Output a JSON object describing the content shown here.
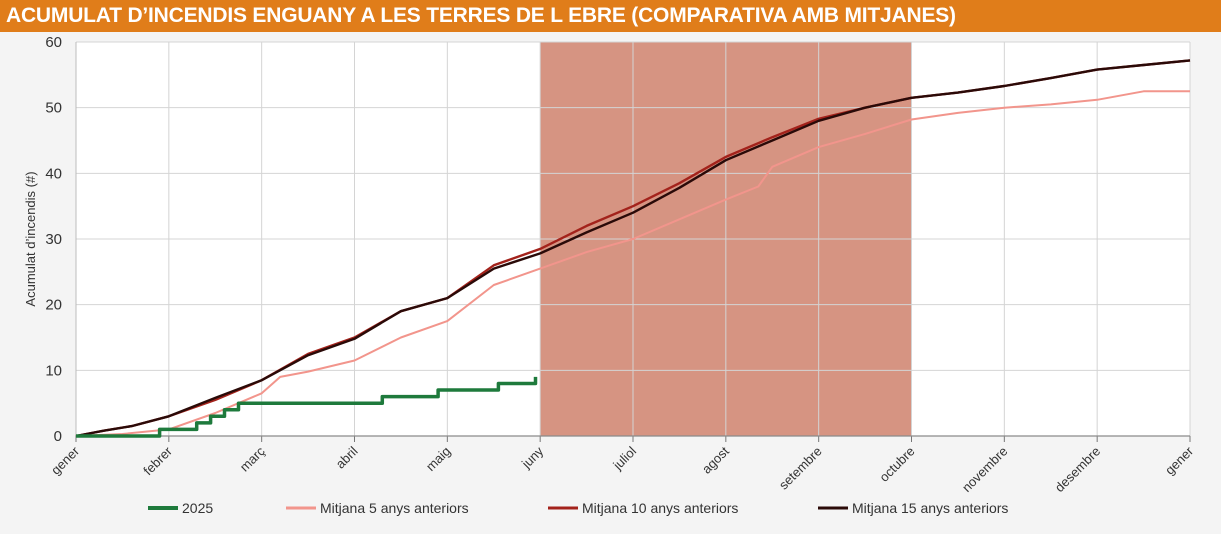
{
  "title": "ACUMULAT D’INCENDIS ENGUANY A LES TERRES DE L EBRE (COMPARATIVA AMB MITJANES)",
  "colors": {
    "title_bar": "#e07d1a",
    "highlight": "#d28b77",
    "series_2025": "#1e7a3c",
    "series_5": "#f2958c",
    "series_10": "#a3221b",
    "series_15": "#2a0a08"
  },
  "chart_data": {
    "type": "line",
    "title": "",
    "ylabel": "Acumulat d’incendis (#)",
    "xlabel": "",
    "ylim": [
      0,
      60
    ],
    "yticks": [
      0,
      10,
      20,
      30,
      40,
      50,
      60
    ],
    "xlim": [
      0,
      12
    ],
    "month_labels": [
      "gener",
      "febrer",
      "març",
      "abril",
      "maig",
      "juny",
      "juliol",
      "agost",
      "setembre",
      "octubre",
      "novembre",
      "desembre",
      "gener"
    ],
    "highlight_range": [
      5,
      9
    ],
    "grid": true,
    "legend_position": "bottom",
    "series": [
      {
        "name": "2025",
        "color": "#1e7a3c",
        "x": [
          0,
          0.9,
          0.9,
          1.3,
          1.3,
          1.45,
          1.45,
          1.6,
          1.6,
          1.75,
          1.75,
          1.95,
          1.95,
          3.3,
          3.3,
          3.9,
          3.9,
          4.3,
          4.3,
          4.55,
          4.55,
          4.95,
          4.95
        ],
        "y": [
          0,
          0,
          1,
          1,
          2,
          2,
          3,
          3,
          4,
          4,
          5,
          5,
          5,
          5,
          6,
          6,
          7,
          7,
          7,
          7,
          8,
          8,
          9
        ]
      },
      {
        "name": "Mitjana 5 anys anteriors",
        "color": "#f2958c",
        "x": [
          0,
          0.5,
          1,
          1.5,
          2,
          2.2,
          2.5,
          3,
          3.5,
          4,
          4.5,
          5,
          5.5,
          6,
          6.5,
          7,
          7.35,
          7.5,
          8,
          8.5,
          9,
          9.5,
          10,
          10.5,
          11,
          11.5,
          12
        ],
        "y": [
          0,
          0.3,
          1,
          3.5,
          6.5,
          9,
          9.8,
          11.5,
          15,
          17.5,
          23,
          25.5,
          28,
          30,
          33,
          36,
          38,
          41,
          44,
          46,
          48.2,
          49.2,
          50,
          50.5,
          51.2,
          52.5,
          52.5
        ]
      },
      {
        "name": "Mitjana 10 anys anteriors",
        "color": "#a3221b",
        "x": [
          0,
          0.3,
          0.6,
          1,
          1.5,
          2,
          2.5,
          3,
          3.5,
          4,
          4.5,
          5,
          5.5,
          6,
          6.5,
          7,
          7.5,
          8,
          8.5,
          9,
          9.5,
          10,
          10.5,
          11,
          11.5,
          12
        ],
        "y": [
          0,
          0.8,
          1.5,
          3,
          5.5,
          8.5,
          12.5,
          15,
          19,
          21,
          26,
          28.5,
          32,
          35,
          38.5,
          42.5,
          45.5,
          48.3,
          50,
          51.5,
          52.3,
          53.3,
          54.5,
          55.8,
          56.5,
          57.2
        ]
      },
      {
        "name": "Mitjana 15 anys anteriors",
        "color": "#2a0a08",
        "x": [
          0,
          0.3,
          0.6,
          1,
          1.5,
          2,
          2.5,
          3,
          3.5,
          4,
          4.5,
          5,
          5.5,
          6,
          6.5,
          7,
          7.5,
          8,
          8.5,
          9,
          9.5,
          10,
          10.5,
          11,
          11.5,
          12
        ],
        "y": [
          0,
          0.8,
          1.5,
          3,
          5.8,
          8.5,
          12.3,
          14.8,
          19,
          21,
          25.5,
          27.8,
          31,
          34,
          37.8,
          42,
          45,
          48,
          50,
          51.5,
          52.3,
          53.3,
          54.5,
          55.8,
          56.5,
          57.2
        ]
      }
    ]
  }
}
